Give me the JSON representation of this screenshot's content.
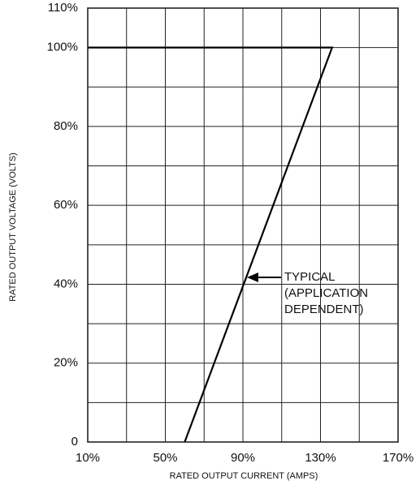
{
  "chart_data": {
    "type": "line",
    "xlabel": "RATED OUTPUT CURRENT (AMPS)",
    "ylabel": "RATED OUTPUT VOLTAGE (VOLTS)",
    "annotation": [
      "TYPICAL",
      "(APPLICATION",
      "DEPENDENT)"
    ],
    "xlim": [
      10,
      170
    ],
    "ylim": [
      0,
      110
    ],
    "xticks": [
      {
        "value": 10,
        "label": "10%"
      },
      {
        "value": 50,
        "label": "50%"
      },
      {
        "value": 90,
        "label": "90%"
      },
      {
        "value": 130,
        "label": "130%"
      },
      {
        "value": 170,
        "label": "170%"
      }
    ],
    "xminor": [
      30,
      70,
      110,
      150
    ],
    "yticks": [
      0,
      {
        "value": 20,
        "label": "20%"
      },
      {
        "value": 40,
        "label": "40%"
      },
      {
        "value": 60,
        "label": "60%"
      },
      {
        "value": 80,
        "label": "80%"
      },
      {
        "value": 100,
        "label": "100%"
      },
      {
        "value": 110,
        "label": "110%"
      }
    ],
    "yminor": [
      10,
      30,
      50,
      70,
      90
    ],
    "grid": true,
    "series": [
      {
        "color": "#000000",
        "x": [
          10,
          136,
          60
        ],
        "values": [
          100,
          100,
          0
        ]
      }
    ]
  }
}
